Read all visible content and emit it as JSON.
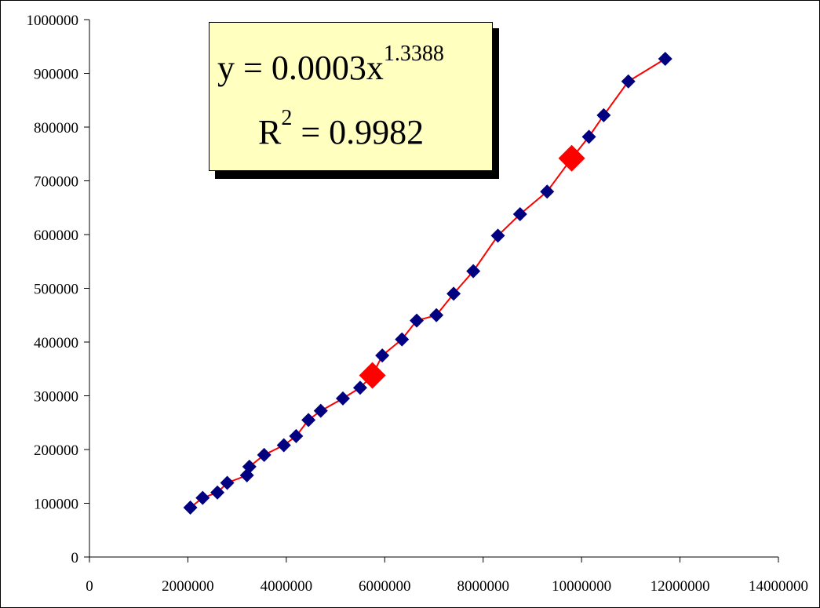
{
  "chart_data": {
    "type": "scatter",
    "title": "",
    "xlabel": "",
    "ylabel": "",
    "xlim": [
      0,
      14000000
    ],
    "ylim": [
      0,
      1000000
    ],
    "x_ticks": [
      "0",
      "2000000",
      "4000000",
      "6000000",
      "8000000",
      "10000000",
      "12000000",
      "14000000"
    ],
    "y_ticks": [
      "0",
      "100000",
      "200000",
      "300000",
      "400000",
      "500000",
      "600000",
      "700000",
      "800000",
      "900000",
      "1000000"
    ],
    "grid": false,
    "legend": "none",
    "series": [
      {
        "marker": "diamond",
        "color": "#000080",
        "points": [
          [
            2050000,
            92000
          ],
          [
            2300000,
            110000
          ],
          [
            2600000,
            120000
          ],
          [
            2800000,
            138000
          ],
          [
            3200000,
            152000
          ],
          [
            3250000,
            168000
          ],
          [
            3550000,
            190000
          ],
          [
            3950000,
            208000
          ],
          [
            4200000,
            225000
          ],
          [
            4450000,
            255000
          ],
          [
            4700000,
            272000
          ],
          [
            5150000,
            295000
          ],
          [
            5500000,
            315000
          ],
          [
            5950000,
            375000
          ],
          [
            6350000,
            405000
          ],
          [
            6650000,
            440000
          ],
          [
            7050000,
            450000
          ],
          [
            7400000,
            490000
          ],
          [
            7800000,
            532000
          ],
          [
            8300000,
            598000
          ],
          [
            8750000,
            638000
          ],
          [
            9300000,
            680000
          ],
          [
            10150000,
            782000
          ],
          [
            10450000,
            822000
          ],
          [
            10950000,
            885000
          ],
          [
            11700000,
            927000
          ]
        ]
      },
      {
        "marker": "diamond-large",
        "color": "#ff0000",
        "points": [
          [
            5750000,
            338000
          ],
          [
            9800000,
            742000
          ]
        ]
      }
    ],
    "trendline": {
      "type": "power",
      "color": "#ff0000",
      "x_range": [
        2050000,
        11700000
      ],
      "equation": "y = 0.0003x^1.3388",
      "r2": "0.9982"
    }
  },
  "equation_box": {
    "line1_main": "y = 0.0003x",
    "line1_exp": "1.3388",
    "line2_main": "R",
    "line2_exp": "2",
    "line2_rest": " = 0.9982",
    "background": "#ffffc0"
  }
}
